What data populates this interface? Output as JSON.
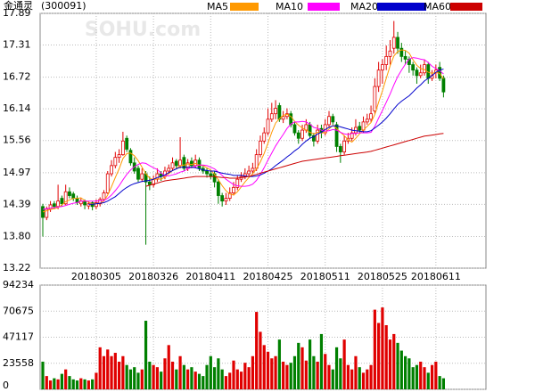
{
  "chart_data": {
    "type": "candlestick",
    "title": "金通灵",
    "subtitle": "(300091)",
    "watermark": "SOHU.com",
    "up_color": "#e00000",
    "down_color": "#008000",
    "grid": true,
    "categories": [
      null,
      null,
      null,
      null,
      null,
      null,
      null,
      null,
      null,
      null,
      null,
      null,
      null,
      null,
      "20180305",
      null,
      null,
      null,
      null,
      null,
      null,
      null,
      null,
      null,
      null,
      null,
      null,
      null,
      null,
      "20180326",
      null,
      null,
      null,
      null,
      null,
      null,
      null,
      null,
      null,
      null,
      null,
      null,
      null,
      null,
      "20180411",
      null,
      null,
      null,
      null,
      null,
      null,
      null,
      null,
      null,
      null,
      null,
      null,
      null,
      null,
      "20180425",
      null,
      null,
      null,
      null,
      null,
      null,
      null,
      null,
      null,
      null,
      null,
      null,
      null,
      null,
      "20180511",
      null,
      null,
      null,
      null,
      null,
      null,
      null,
      null,
      null,
      null,
      null,
      null,
      null,
      null,
      "20180525",
      null,
      null,
      null,
      null,
      null,
      null,
      null,
      null,
      null,
      null,
      null,
      null,
      null,
      "20180611",
      null,
      null
    ],
    "open": [
      14.35,
      14.15,
      14.3,
      14.4,
      14.35,
      14.5,
      14.4,
      14.62,
      14.58,
      14.5,
      14.4,
      14.45,
      14.36,
      14.42,
      14.35,
      14.4,
      14.48,
      14.6,
      14.95,
      15.1,
      15.25,
      15.3,
      15.6,
      15.38,
      15.15,
      15.05,
      14.85,
      14.95,
      14.8,
      14.75,
      14.85,
      14.95,
      14.9,
      15.0,
      15.05,
      15.18,
      15.1,
      15.25,
      15.05,
      15.18,
      15.1,
      15.2,
      15.05,
      15.0,
      14.95,
      14.95,
      14.8,
      14.55,
      14.45,
      14.5,
      14.6,
      14.7,
      14.85,
      14.9,
      14.95,
      15.0,
      15.05,
      15.3,
      15.55,
      15.7,
      15.95,
      16.05,
      16.2,
      15.95,
      16.0,
      16.05,
      15.85,
      15.7,
      15.6,
      15.75,
      15.85,
      15.65,
      15.55,
      15.78,
      15.7,
      15.85,
      16.0,
      15.85,
      15.45,
      15.35,
      15.55,
      15.6,
      15.7,
      15.82,
      15.75,
      15.9,
      15.95,
      16.1,
      16.55,
      16.85,
      16.95,
      17.1,
      17.25,
      17.45,
      17.25,
      17.1,
      17.05,
      16.95,
      16.85,
      16.75,
      16.8,
      16.95,
      16.7,
      16.8,
      16.9,
      16.7
    ],
    "high": [
      14.4,
      14.35,
      14.45,
      14.45,
      14.75,
      14.55,
      14.75,
      14.7,
      14.62,
      14.55,
      14.5,
      14.48,
      14.45,
      14.45,
      14.48,
      14.52,
      14.65,
      15.0,
      15.2,
      15.35,
      15.4,
      15.72,
      15.65,
      15.42,
      15.25,
      15.1,
      15.05,
      15.0,
      14.9,
      14.92,
      15.05,
      15.0,
      15.08,
      15.12,
      15.25,
      15.22,
      15.62,
      15.3,
      15.22,
      15.25,
      15.3,
      15.25,
      15.1,
      15.05,
      15.0,
      15.0,
      14.85,
      14.6,
      14.6,
      14.7,
      14.8,
      14.92,
      14.98,
      15.05,
      15.1,
      15.15,
      15.4,
      15.65,
      15.8,
      16.15,
      16.25,
      16.3,
      16.25,
      16.1,
      16.15,
      16.1,
      15.9,
      15.75,
      15.85,
      15.95,
      15.9,
      15.7,
      15.85,
      15.85,
      15.95,
      16.1,
      16.05,
      15.9,
      15.5,
      15.65,
      15.7,
      15.8,
      15.95,
      15.9,
      16.0,
      16.05,
      16.2,
      16.7,
      17.0,
      17.05,
      17.3,
      17.4,
      17.75,
      17.55,
      17.35,
      17.2,
      17.1,
      17.0,
      16.9,
      16.95,
      17.05,
      17.0,
      16.85,
      16.95,
      17.0,
      16.75
    ],
    "low": [
      13.8,
      14.1,
      14.25,
      14.3,
      14.3,
      14.35,
      14.38,
      14.5,
      14.45,
      14.38,
      14.35,
      14.3,
      14.3,
      14.28,
      14.3,
      14.35,
      14.45,
      14.58,
      14.9,
      15.05,
      15.15,
      15.28,
      15.35,
      15.1,
      14.95,
      14.8,
      14.8,
      13.65,
      14.65,
      14.7,
      14.8,
      14.82,
      14.85,
      14.95,
      15.0,
      15.05,
      15.05,
      15.0,
      15.0,
      15.05,
      15.05,
      15.0,
      14.95,
      14.88,
      14.85,
      14.7,
      14.4,
      14.35,
      14.38,
      14.45,
      14.55,
      14.65,
      14.8,
      14.85,
      14.9,
      14.95,
      15.0,
      15.25,
      15.5,
      15.65,
      15.9,
      15.95,
      15.9,
      15.88,
      15.95,
      15.8,
      15.65,
      15.5,
      15.55,
      15.7,
      15.6,
      15.45,
      15.5,
      15.6,
      15.65,
      15.8,
      15.85,
      15.35,
      15.15,
      15.3,
      15.5,
      15.55,
      15.65,
      15.7,
      15.7,
      15.85,
      15.9,
      16.05,
      16.45,
      16.6,
      16.85,
      16.95,
      17.15,
      17.15,
      17.0,
      16.95,
      16.8,
      16.75,
      16.6,
      16.7,
      16.75,
      16.6,
      16.65,
      16.7,
      16.65,
      16.35
    ],
    "close": [
      14.15,
      14.3,
      14.38,
      14.35,
      14.45,
      14.4,
      14.62,
      14.55,
      14.5,
      14.42,
      14.45,
      14.38,
      14.4,
      14.35,
      14.42,
      14.48,
      14.6,
      14.95,
      15.1,
      15.25,
      15.3,
      15.55,
      15.4,
      15.15,
      15.0,
      14.85,
      14.95,
      14.8,
      14.75,
      14.85,
      14.95,
      14.9,
      15.0,
      15.05,
      15.15,
      15.1,
      15.2,
      15.05,
      15.15,
      15.1,
      15.2,
      15.05,
      15.0,
      14.95,
      14.9,
      14.8,
      14.55,
      14.45,
      14.5,
      14.6,
      14.7,
      14.85,
      14.9,
      14.95,
      15.0,
      15.05,
      15.3,
      15.55,
      15.7,
      15.95,
      16.05,
      16.15,
      15.95,
      16.0,
      16.05,
      15.85,
      15.7,
      15.6,
      15.75,
      15.85,
      15.65,
      15.55,
      15.75,
      15.7,
      15.85,
      16.0,
      15.9,
      15.45,
      15.35,
      15.55,
      15.6,
      15.7,
      15.8,
      15.75,
      15.9,
      15.95,
      16.05,
      16.55,
      16.85,
      16.95,
      17.1,
      17.2,
      17.45,
      17.25,
      17.1,
      17.05,
      16.95,
      16.85,
      16.75,
      16.8,
      16.95,
      16.7,
      16.75,
      16.85,
      16.7,
      16.45
    ],
    "volume": [
      25000,
      12000,
      8000,
      10000,
      9000,
      14000,
      18000,
      12000,
      9000,
      8000,
      10000,
      9000,
      8000,
      9000,
      15000,
      38000,
      30000,
      36000,
      30000,
      33000,
      25000,
      30000,
      22000,
      18000,
      20000,
      15000,
      18000,
      62000,
      25000,
      22000,
      20000,
      16000,
      28000,
      40000,
      25000,
      18000,
      30000,
      22000,
      18000,
      20000,
      16000,
      14000,
      12000,
      22000,
      30000,
      20000,
      28000,
      18000,
      12000,
      15000,
      26000,
      18000,
      16000,
      24000,
      20000,
      30000,
      70000,
      52000,
      40000,
      34000,
      28000,
      30000,
      45000,
      25000,
      22000,
      24000,
      30000,
      42000,
      38000,
      26000,
      45000,
      30000,
      25000,
      50000,
      32000,
      22000,
      18000,
      38000,
      28000,
      45000,
      22000,
      18000,
      30000,
      20000,
      15000,
      18000,
      22000,
      72000,
      60000,
      74000,
      58000,
      45000,
      50000,
      42000,
      35000,
      30000,
      28000,
      20000,
      22000,
      25000,
      20000,
      15000,
      22000,
      25000,
      12000,
      10000
    ],
    "series": [
      {
        "name": "MA5",
        "color": "#ff9900",
        "values": [
          14.25,
          14.27,
          14.3,
          14.31,
          14.33,
          14.38,
          14.44,
          14.47,
          14.5,
          14.5,
          14.51,
          14.46,
          14.43,
          14.4,
          14.4,
          14.41,
          14.45,
          14.56,
          14.71,
          14.88,
          15.04,
          15.23,
          15.32,
          15.33,
          15.28,
          15.19,
          15.07,
          14.95,
          14.87,
          14.84,
          14.86,
          14.85,
          14.89,
          14.95,
          15.01,
          15.04,
          15.1,
          15.11,
          15.13,
          15.12,
          15.14,
          15.11,
          15.1,
          15.06,
          15.02,
          14.94,
          14.84,
          14.73,
          14.64,
          14.58,
          14.56,
          14.62,
          14.71,
          14.8,
          14.88,
          14.95,
          15.04,
          15.17,
          15.32,
          15.51,
          15.71,
          15.88,
          15.96,
          16.02,
          16.04,
          16.0,
          15.91,
          15.84,
          15.79,
          15.75,
          15.71,
          15.68,
          15.71,
          15.7,
          15.7,
          15.77,
          15.84,
          15.78,
          15.71,
          15.65,
          15.57,
          15.53,
          15.6,
          15.68,
          15.75,
          15.82,
          15.89,
          16.04,
          16.26,
          16.47,
          16.7,
          16.93,
          17.11,
          17.19,
          17.22,
          17.21,
          17.16,
          17.04,
          16.94,
          16.88,
          16.86,
          16.81,
          16.79,
          16.81,
          16.79,
          16.69
        ]
      },
      {
        "name": "MA10",
        "color": "#ff00ff",
        "values": [
          14.3,
          14.31,
          14.32,
          14.33,
          14.34,
          14.35,
          14.37,
          14.39,
          14.41,
          14.42,
          14.45,
          14.45,
          14.45,
          14.45,
          14.45,
          14.46,
          14.46,
          14.5,
          14.56,
          14.64,
          14.73,
          14.84,
          14.94,
          15.02,
          15.08,
          15.12,
          15.15,
          15.14,
          15.1,
          15.06,
          15.03,
          14.96,
          14.92,
          14.91,
          14.93,
          14.95,
          14.98,
          15.0,
          15.04,
          15.07,
          15.09,
          15.11,
          15.11,
          15.1,
          15.07,
          15.04,
          14.98,
          14.92,
          14.85,
          14.8,
          14.75,
          14.73,
          14.72,
          14.72,
          14.73,
          14.76,
          14.83,
          14.94,
          15.06,
          15.2,
          15.33,
          15.46,
          15.57,
          15.67,
          15.78,
          15.86,
          15.9,
          15.9,
          15.91,
          15.9,
          15.86,
          15.8,
          15.78,
          15.75,
          15.73,
          15.74,
          15.76,
          15.75,
          15.71,
          15.68,
          15.67,
          15.69,
          15.69,
          15.7,
          15.7,
          15.7,
          15.71,
          15.82,
          15.97,
          16.11,
          16.26,
          16.41,
          16.58,
          16.73,
          16.85,
          16.96,
          17.05,
          17.08,
          17.07,
          17.05,
          17.04,
          16.99,
          16.92,
          16.88,
          16.84,
          16.78
        ]
      },
      {
        "name": "MA20",
        "color": "#0000cc",
        "values": [
          null,
          null,
          null,
          null,
          null,
          null,
          null,
          null,
          null,
          null,
          null,
          null,
          14.39,
          14.39,
          14.4,
          14.41,
          14.42,
          14.45,
          14.49,
          14.53,
          14.59,
          14.65,
          14.7,
          14.74,
          14.77,
          14.79,
          14.81,
          14.82,
          14.83,
          14.85,
          14.88,
          14.9,
          14.93,
          14.97,
          15.01,
          15.04,
          15.07,
          15.07,
          15.07,
          15.07,
          15.06,
          15.04,
          15.02,
          15.01,
          15.0,
          15.0,
          14.98,
          14.96,
          14.95,
          14.94,
          14.92,
          14.92,
          14.92,
          14.91,
          14.9,
          14.9,
          14.91,
          14.93,
          14.96,
          15.0,
          15.04,
          15.1,
          15.15,
          15.2,
          15.26,
          15.31,
          15.37,
          15.42,
          15.49,
          15.55,
          15.6,
          15.63,
          15.68,
          15.71,
          15.76,
          15.8,
          15.83,
          15.83,
          15.81,
          15.79,
          15.77,
          15.75,
          15.74,
          15.73,
          15.72,
          15.72,
          15.74,
          15.79,
          15.84,
          15.9,
          15.97,
          16.05,
          16.14,
          16.22,
          16.28,
          16.33,
          16.38,
          16.45,
          16.52,
          16.58,
          16.65,
          16.7,
          16.75,
          16.81,
          16.85,
          16.87
        ]
      },
      {
        "name": "MA60",
        "color": "#cc0000",
        "values": [
          null,
          null,
          null,
          null,
          null,
          null,
          null,
          null,
          null,
          null,
          null,
          null,
          null,
          null,
          null,
          null,
          null,
          null,
          null,
          null,
          null,
          null,
          null,
          null,
          null,
          null,
          null,
          14.72,
          14.74,
          14.76,
          14.78,
          14.8,
          14.82,
          14.83,
          14.84,
          14.85,
          14.86,
          14.87,
          14.88,
          14.89,
          14.9,
          14.9,
          14.9,
          14.9,
          14.9,
          14.9,
          14.89,
          14.88,
          14.88,
          14.87,
          14.87,
          14.87,
          14.88,
          14.89,
          14.9,
          14.92,
          14.94,
          14.96,
          14.98,
          15.0,
          15.02,
          15.04,
          15.06,
          15.08,
          15.1,
          15.12,
          15.14,
          15.16,
          15.18,
          15.19,
          15.2,
          15.21,
          15.22,
          15.23,
          15.24,
          15.25,
          15.26,
          15.27,
          15.28,
          15.29,
          15.3,
          15.31,
          15.32,
          15.33,
          15.34,
          15.35,
          15.36,
          15.38,
          15.4,
          15.42,
          15.44,
          15.46,
          15.48,
          15.5,
          15.52,
          15.54,
          15.56,
          15.58,
          15.6,
          15.62,
          15.64,
          15.65,
          15.66,
          15.67,
          15.68,
          15.69
        ]
      }
    ],
    "ylim": [
      13.22,
      17.89
    ],
    "yticks": [
      13.22,
      {
        "value": 13.8,
        "label": "13.80"
      },
      14.39,
      14.97,
      15.56,
      16.14,
      16.72,
      17.31,
      17.89
    ],
    "volume_ylim": [
      0,
      94234
    ],
    "volume_yticks": [
      0,
      23558,
      47117,
      70675,
      94234
    ]
  }
}
